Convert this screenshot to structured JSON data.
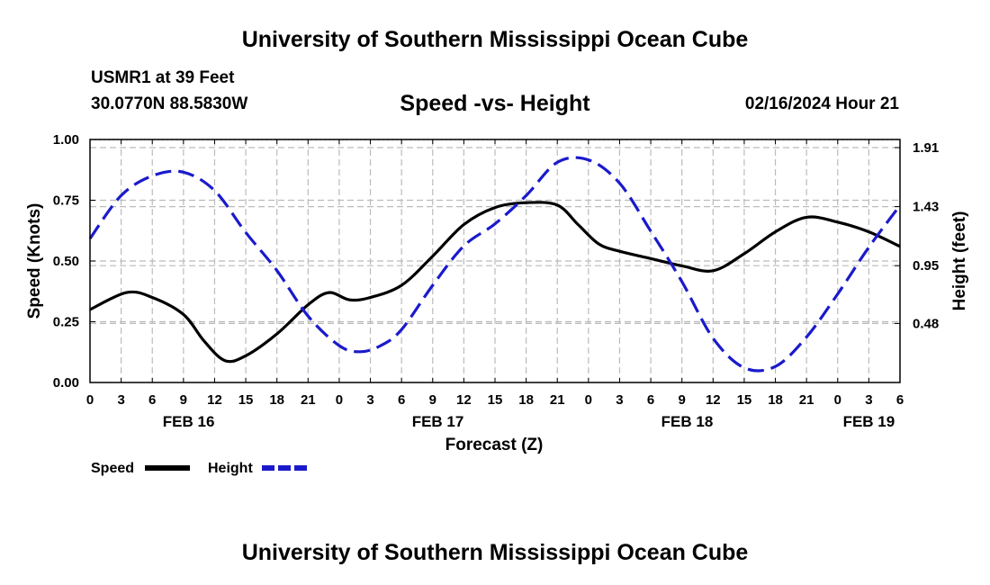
{
  "header": {
    "title": "University of Southern Mississippi Ocean Cube",
    "station": "USMR1 at 39 Feet",
    "coordinates": "30.0770N  88.5830W",
    "date": "02/16/2024 Hour 21"
  },
  "footer": {
    "title": "University of Southern Mississippi Ocean Cube"
  },
  "colors": {
    "speed": "#000000",
    "height": "#1a1acc",
    "grid": "#bbbbbb"
  },
  "chart_data": {
    "type": "line",
    "title": "Speed -vs- Height",
    "xlabel": "Forecast (Z)",
    "ylabel": "Speed (Knots)",
    "ylabel_right": "Height (feet)",
    "xlim": [
      0,
      78
    ],
    "ylim": [
      0,
      1.0
    ],
    "ylim_right": [
      0.0,
      1.91
    ],
    "x_ticks": [
      0,
      3,
      6,
      9,
      12,
      15,
      18,
      21,
      24,
      27,
      30,
      33,
      36,
      39,
      42,
      45,
      48,
      51,
      54,
      57,
      60,
      63,
      66,
      69,
      72,
      75,
      78
    ],
    "x_tick_labels": [
      "0",
      "3",
      "6",
      "9",
      "12",
      "15",
      "18",
      "21",
      "0",
      "3",
      "6",
      "9",
      "12",
      "15",
      "18",
      "21",
      "0",
      "3",
      "6",
      "9",
      "12",
      "15",
      "18",
      "21",
      "0",
      "3",
      "6"
    ],
    "date_labels": [
      {
        "x": 9.5,
        "label": "FEB 16"
      },
      {
        "x": 33.5,
        "label": "FEB 17"
      },
      {
        "x": 57.5,
        "label": "FEB 18"
      },
      {
        "x": 75,
        "label": "FEB 19"
      }
    ],
    "y_ticks": [
      0,
      0.25,
      0.5,
      0.75,
      1.0
    ],
    "y_tick_labels": [
      "0.00",
      "0.25",
      "0.50",
      "0.75",
      "1.00"
    ],
    "y_right_ticks": [
      0.48,
      0.95,
      1.43,
      1.91
    ],
    "y_right_tick_labels": [
      "0.48",
      "0.95",
      "1.43",
      "1.91"
    ],
    "grid": true,
    "legend_position": "bottom-left",
    "series": [
      {
        "name": "Speed",
        "axis": "left",
        "style": "solid",
        "x": [
          0,
          3.5,
          6,
          9,
          11,
          13,
          15,
          18,
          21,
          23,
          25,
          27,
          30,
          33,
          36,
          39,
          42,
          45,
          47,
          49,
          51,
          54,
          57,
          60,
          63,
          66,
          69,
          72,
          75,
          78
        ],
        "y": [
          0.3,
          0.37,
          0.35,
          0.28,
          0.17,
          0.09,
          0.11,
          0.2,
          0.32,
          0.37,
          0.34,
          0.35,
          0.4,
          0.52,
          0.65,
          0.72,
          0.74,
          0.73,
          0.65,
          0.57,
          0.54,
          0.51,
          0.48,
          0.46,
          0.53,
          0.62,
          0.68,
          0.66,
          0.62,
          0.56
        ]
      },
      {
        "name": "Height",
        "axis": "right",
        "style": "dashed",
        "x": [
          0,
          3,
          6,
          9,
          12,
          15,
          18,
          21,
          24,
          26,
          28,
          30,
          33,
          36,
          39,
          42,
          45,
          48,
          51,
          54,
          57,
          60,
          63,
          66,
          69,
          72,
          75,
          78
        ],
        "y": [
          1.17,
          1.52,
          1.68,
          1.71,
          1.56,
          1.22,
          0.91,
          0.54,
          0.3,
          0.25,
          0.3,
          0.43,
          0.79,
          1.11,
          1.29,
          1.52,
          1.79,
          1.81,
          1.62,
          1.23,
          0.82,
          0.36,
          0.12,
          0.13,
          0.37,
          0.72,
          1.1,
          1.44
        ]
      }
    ]
  }
}
